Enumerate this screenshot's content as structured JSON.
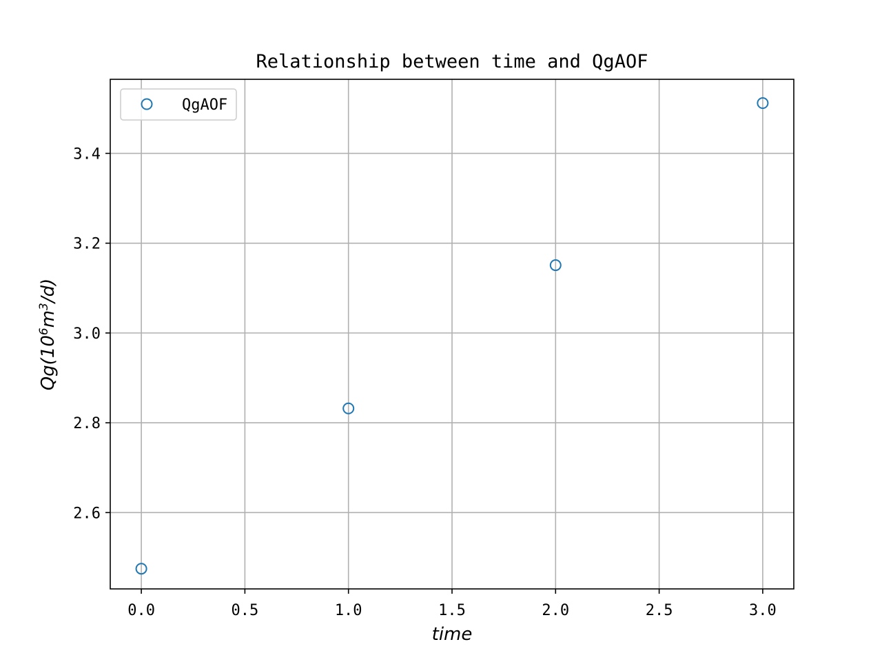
{
  "chart_data": {
    "type": "scatter",
    "title": "Relationship between time and QgAOF",
    "xlabel": "time",
    "ylabel": {
      "prefix": "Qg(10",
      "sup1": "6",
      "mid": "m",
      "sup2": "3",
      "suffix": "/d)"
    },
    "xlim": [
      -0.15,
      3.15
    ],
    "ylim": [
      2.43,
      3.565
    ],
    "xticks": [
      0.0,
      0.5,
      1.0,
      1.5,
      2.0,
      2.5,
      3.0
    ],
    "xtick_labels": [
      "0.0",
      "0.5",
      "1.0",
      "1.5",
      "2.0",
      "2.5",
      "3.0"
    ],
    "yticks": [
      2.6,
      2.8,
      3.0,
      3.2,
      3.4
    ],
    "ytick_labels": [
      "2.6",
      "2.8",
      "3.0",
      "3.2",
      "3.4"
    ],
    "grid": true,
    "legend_position": "top-left",
    "marker_color": "#1f77b4",
    "series": [
      {
        "name": "QgAOF",
        "marker": "open-circle",
        "x": [
          0,
          1,
          2,
          3
        ],
        "y": [
          2.475,
          2.832,
          3.151,
          3.512
        ]
      }
    ]
  }
}
